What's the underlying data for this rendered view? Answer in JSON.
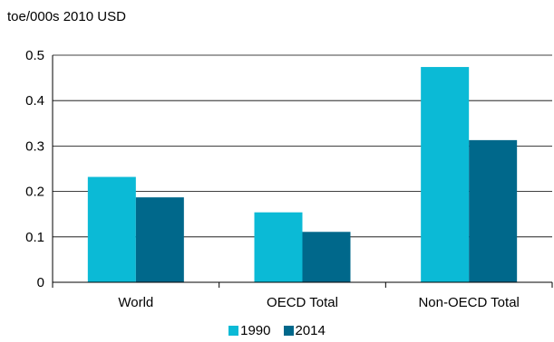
{
  "chart_data": {
    "type": "bar",
    "unit_label": "toe/000s 2010 USD",
    "categories": [
      "World",
      "OECD Total",
      "Non-OECD Total"
    ],
    "series": [
      {
        "name": "1990",
        "values": [
          0.232,
          0.154,
          0.474
        ],
        "color": "#0bbad6"
      },
      {
        "name": "2014",
        "values": [
          0.187,
          0.111,
          0.313
        ],
        "color": "#00688b"
      }
    ],
    "ylim": [
      0,
      0.5
    ],
    "yticks": [
      "0",
      "0.1",
      "0.2",
      "0.3",
      "0.4",
      "0.5"
    ],
    "grid": true,
    "legend_position": "bottom-center"
  }
}
